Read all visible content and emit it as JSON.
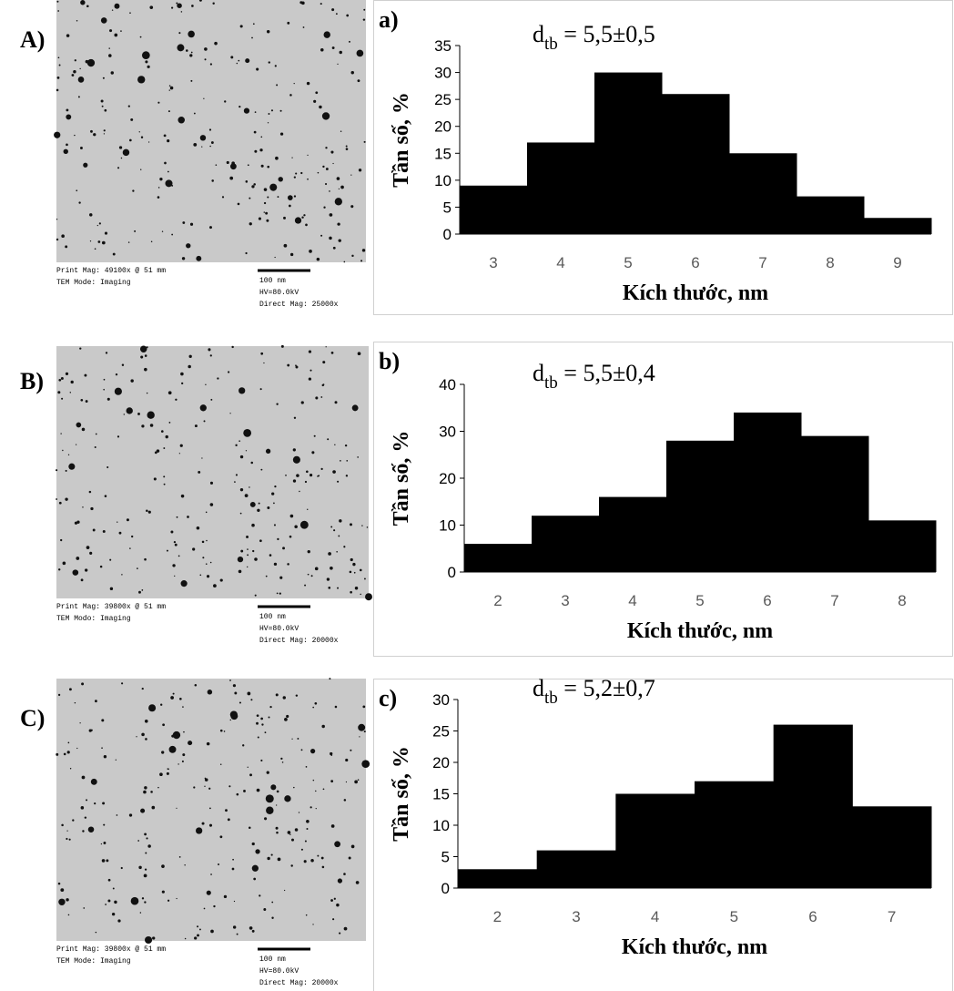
{
  "panels": [
    {
      "label": "A)",
      "tem": {
        "print_mag": "Print Mag: 49100x @ 51 mm",
        "mode": "TEM Mode: Imaging",
        "scale": "100 nm",
        "hv": "HV=80.0kV",
        "direct_mag": "Direct Mag: 25000x"
      }
    },
    {
      "label": "B)",
      "tem": {
        "print_mag": "Print Mag: 39800x @ 51 mm",
        "mode": "TEM Modo: Imaging",
        "scale": "100 nm",
        "hv": "HV=80.0kV",
        "direct_mag": "Direct Mag: 20000x"
      }
    },
    {
      "label": "C)",
      "tem": {
        "print_mag": "Print Mag: 39800x @ 51 mm",
        "mode": "TEM Mode: Imaging",
        "scale": "100 nm",
        "hv": "HV=80.0kV",
        "direct_mag": "Direct Mag: 20000x"
      }
    }
  ],
  "chart_data": [
    {
      "type": "bar",
      "panel_label": "a)",
      "annotation": {
        "base": "d",
        "sub": "tb",
        "rest": " = 5,5±0,5"
      },
      "y_label": "Tần số, %",
      "x_label": "Kích thước, nm",
      "categories": [
        "3",
        "4",
        "5",
        "6",
        "7",
        "8",
        "9"
      ],
      "values": [
        9,
        17,
        30,
        26,
        15,
        7,
        3
      ],
      "color": "#000000",
      "ylim": [
        0,
        35
      ],
      "yticks": [
        0,
        5,
        10,
        15,
        20,
        25,
        30,
        35
      ]
    },
    {
      "type": "bar",
      "panel_label": "b)",
      "annotation": {
        "base": "d",
        "sub": "tb",
        "rest": " = 5,5±0,4"
      },
      "y_label": "Tần số, %",
      "x_label": "Kích thước, nm",
      "categories": [
        "2",
        "3",
        "4",
        "5",
        "6",
        "7",
        "8"
      ],
      "values": [
        6,
        12,
        16,
        28,
        34,
        29,
        11
      ],
      "color": "#000000",
      "ylim": [
        0,
        40
      ],
      "yticks": [
        0,
        10,
        20,
        30,
        40
      ]
    },
    {
      "type": "bar",
      "panel_label": "c)",
      "annotation": {
        "base": "d",
        "sub": "tb",
        "rest": " = 5,2±0,7"
      },
      "y_label": "Tần số, %",
      "x_label": "Kích thước, nm",
      "categories": [
        "2",
        "3",
        "4",
        "5",
        "6",
        "7"
      ],
      "values": [
        3,
        6,
        15,
        17,
        26,
        13
      ],
      "color": "#000000",
      "ylim": [
        0,
        30
      ],
      "yticks": [
        0,
        5,
        10,
        15,
        20,
        25,
        30
      ]
    }
  ]
}
